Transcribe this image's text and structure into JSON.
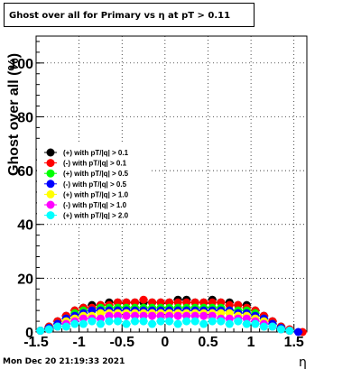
{
  "title": "Ghost over all for Primary vs  η at pT > 0.11",
  "timestamp": "Mon Dec 20 21:19:33 2021",
  "chart_data": {
    "type": "scatter",
    "title": "Ghost over all for Primary vs  η at pT > 0.11",
    "xlabel": "η",
    "ylabel": "Ghost  over all (%)",
    "xlim": [
      -1.5,
      1.65
    ],
    "ylim": [
      0,
      110
    ],
    "xticks": [
      "-1.5",
      "-1",
      "-0.5",
      "0",
      "0.5",
      "1",
      "1.5"
    ],
    "yticks": [
      "0",
      "20",
      "40",
      "60",
      "80",
      "100"
    ],
    "grid": true,
    "legend_position": "middle-left",
    "series": [
      {
        "name": "(+) with pT/|q| > 0.1",
        "color": "#000000",
        "x": [
          -1.45,
          -1.35,
          -1.25,
          -1.15,
          -1.05,
          -0.95,
          -0.85,
          -0.75,
          -0.65,
          -0.55,
          -0.45,
          -0.35,
          -0.25,
          -0.15,
          -0.05,
          0.05,
          0.15,
          0.25,
          0.35,
          0.45,
          0.55,
          0.65,
          0.75,
          0.85,
          0.95,
          1.05,
          1.15,
          1.25,
          1.35,
          1.45
        ],
        "y": [
          0.5,
          2,
          4,
          6,
          8,
          9,
          10,
          10,
          11,
          11,
          11,
          11,
          11,
          11,
          11,
          11,
          12,
          12,
          11,
          11,
          12,
          11,
          11,
          10,
          10,
          8,
          6,
          4,
          2,
          0.5
        ]
      },
      {
        "name": "(-) with pT/|q| > 0.1",
        "color": "#ff0000",
        "x": [
          -1.45,
          -1.35,
          -1.25,
          -1.15,
          -1.05,
          -0.95,
          -0.85,
          -0.75,
          -0.65,
          -0.55,
          -0.45,
          -0.35,
          -0.25,
          -0.15,
          -0.05,
          0.05,
          0.15,
          0.25,
          0.35,
          0.45,
          0.55,
          0.65,
          0.75,
          0.85,
          0.95,
          1.05,
          1.15,
          1.25,
          1.35,
          1.45,
          1.6
        ],
        "y": [
          0.5,
          2,
          4,
          6,
          8,
          9,
          9,
          10,
          10,
          11,
          11,
          11,
          12,
          11,
          11,
          11,
          11,
          11,
          11,
          11,
          11,
          11,
          10,
          10,
          9,
          8,
          6,
          4,
          2,
          1,
          0
        ]
      },
      {
        "name": "(+) with pT/|q| > 0.5",
        "color": "#00ff00",
        "x": [
          -1.45,
          -1.35,
          -1.25,
          -1.15,
          -1.05,
          -0.95,
          -0.85,
          -0.75,
          -0.65,
          -0.55,
          -0.45,
          -0.35,
          -0.25,
          -0.15,
          -0.05,
          0.05,
          0.15,
          0.25,
          0.35,
          0.45,
          0.55,
          0.65,
          0.75,
          0.85,
          0.95,
          1.05,
          1.15,
          1.25,
          1.35,
          1.45
        ],
        "y": [
          0.5,
          1.5,
          3,
          5,
          7,
          8,
          8,
          9,
          9,
          9,
          9,
          9,
          9,
          9,
          9,
          9,
          9,
          9,
          9,
          9,
          9,
          9,
          8,
          8,
          8,
          7,
          5,
          3,
          1.5,
          0.5
        ]
      },
      {
        "name": "(-) with pT/|q| > 0.5",
        "color": "#0000ff",
        "x": [
          -1.45,
          -1.35,
          -1.25,
          -1.15,
          -1.05,
          -0.95,
          -0.85,
          -0.75,
          -0.65,
          -0.55,
          -0.45,
          -0.35,
          -0.25,
          -0.15,
          -0.05,
          0.05,
          0.15,
          0.25,
          0.35,
          0.45,
          0.55,
          0.65,
          0.75,
          0.85,
          0.95,
          1.05,
          1.15,
          1.25,
          1.35,
          1.45,
          1.55
        ],
        "y": [
          0.5,
          1.5,
          3,
          5,
          6,
          7,
          8,
          8,
          8,
          8,
          8,
          8,
          8,
          8,
          8,
          8,
          8,
          8,
          8,
          8,
          8,
          8,
          8,
          7,
          7,
          6,
          5,
          3,
          1.5,
          0.5,
          0
        ]
      },
      {
        "name": "(+) with pT/|q| > 1.0",
        "color": "#ffff00",
        "x": [
          -1.45,
          -1.35,
          -1.25,
          -1.15,
          -1.05,
          -0.95,
          -0.85,
          -0.75,
          -0.65,
          -0.55,
          -0.45,
          -0.35,
          -0.25,
          -0.15,
          -0.05,
          0.05,
          0.15,
          0.25,
          0.35,
          0.45,
          0.55,
          0.65,
          0.75,
          0.85,
          0.95,
          1.05,
          1.15,
          1.25,
          1.35,
          1.45
        ],
        "y": [
          0.5,
          1,
          2,
          4,
          5,
          6,
          6,
          7,
          7,
          7,
          7,
          7,
          7,
          7,
          7,
          7,
          7,
          7,
          7,
          7,
          7,
          7,
          7,
          6,
          6,
          5,
          4,
          2,
          1,
          0.5
        ]
      },
      {
        "name": "(-) with pT/|q| > 1.0",
        "color": "#ff00ff",
        "x": [
          -1.45,
          -1.35,
          -1.25,
          -1.15,
          -1.05,
          -0.95,
          -0.85,
          -0.75,
          -0.65,
          -0.55,
          -0.45,
          -0.35,
          -0.25,
          -0.15,
          -0.05,
          0.05,
          0.15,
          0.25,
          0.35,
          0.45,
          0.55,
          0.65,
          0.75,
          0.85,
          0.95,
          1.05,
          1.15,
          1.25,
          1.35,
          1.45
        ],
        "y": [
          0.5,
          1,
          2,
          3,
          4,
          5,
          5,
          5,
          6,
          6,
          6,
          6,
          6,
          6,
          6,
          6,
          6,
          6,
          6,
          6,
          6,
          5,
          5,
          5,
          5,
          4,
          3,
          2,
          1,
          0.5
        ]
      },
      {
        "name": "(+) with pT/|q| > 2.0",
        "color": "#00ffff",
        "x": [
          -1.45,
          -1.35,
          -1.25,
          -1.15,
          -1.05,
          -0.95,
          -0.85,
          -0.75,
          -0.65,
          -0.55,
          -0.45,
          -0.35,
          -0.25,
          -0.15,
          -0.05,
          0.05,
          0.15,
          0.25,
          0.35,
          0.45,
          0.55,
          0.65,
          0.75,
          0.85,
          0.95,
          1.05,
          1.15,
          1.25,
          1.35,
          1.45
        ],
        "y": [
          0.5,
          1,
          2,
          2,
          3,
          3,
          4,
          3,
          4,
          4,
          3,
          4,
          4,
          3,
          4,
          4,
          3,
          4,
          4,
          3,
          4,
          4,
          3,
          4,
          3,
          3,
          2,
          2,
          1,
          0.5
        ]
      }
    ]
  }
}
